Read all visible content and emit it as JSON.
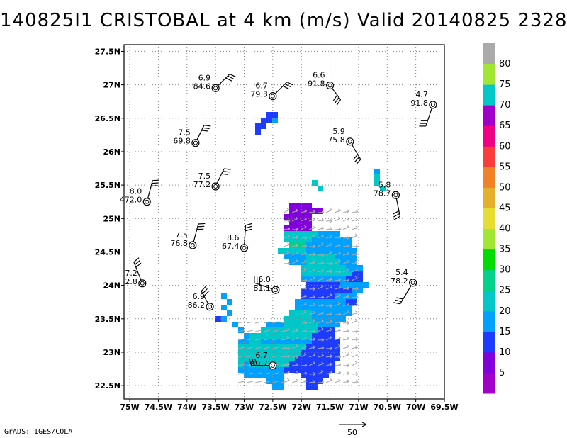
{
  "chart_data": {
    "type": "map",
    "title": "140825I1 CRISTOBAL at 4 km (m/s) Valid 20140825 2328Z",
    "credit": "GrADS: IGES/COLA",
    "x_ticks": [
      "75W",
      "74.5W",
      "74W",
      "73.5W",
      "73W",
      "72.5W",
      "72W",
      "71.5W",
      "71W",
      "70.5W",
      "70W",
      "69.5W"
    ],
    "y_ticks": [
      "22.5N",
      "23N",
      "23.5N",
      "24N",
      "24.5N",
      "25N",
      "25.5N",
      "26N",
      "26.5N",
      "27N",
      "27.5N"
    ],
    "xlim": [
      -75.1,
      -69.5
    ],
    "ylim": [
      22.3,
      27.6
    ],
    "grid": true,
    "colorbar": {
      "levels": [
        "5",
        "10",
        "15",
        "20",
        "25",
        "30",
        "35",
        "40",
        "45",
        "50",
        "55",
        "60",
        "65",
        "70",
        "75",
        "80"
      ],
      "colors": [
        "#a000c8",
        "#8200dc",
        "#1e3cff",
        "#00a0ff",
        "#00c8c8",
        "#00d28c",
        "#00dc00",
        "#a0e632",
        "#e6dc32",
        "#e6af2d",
        "#f08228",
        "#fa3c3c",
        "#f00082",
        "#a000c8",
        "#00c8c8",
        "#a0e632",
        "#aaaaaa"
      ]
    },
    "vector_scale_label": "50",
    "stations": [
      {
        "lon": -73.5,
        "lat": 26.95,
        "speed": "6.9",
        "dir": "84.6"
      },
      {
        "lon": -72.5,
        "lat": 26.83,
        "speed": "6.7",
        "dir": "79.3"
      },
      {
        "lon": -71.5,
        "lat": 26.99,
        "speed": "6.6",
        "dir": "91.8"
      },
      {
        "lon": -69.7,
        "lat": 26.7,
        "speed": "4.7",
        "dir": "91.8"
      },
      {
        "lon": -73.85,
        "lat": 26.13,
        "speed": "7.5",
        "dir": "69.8"
      },
      {
        "lon": -71.15,
        "lat": 26.15,
        "speed": "5.9",
        "dir": "75.8"
      },
      {
        "lon": -73.5,
        "lat": 25.48,
        "speed": "7.5",
        "dir": "77.2"
      },
      {
        "lon": -74.7,
        "lat": 25.25,
        "speed": "8.0",
        "dir": "472.0"
      },
      {
        "lon": -70.35,
        "lat": 25.35,
        "speed": "5.8",
        "dir": "78.7"
      },
      {
        "lon": -73.9,
        "lat": 24.6,
        "speed": "7.5",
        "dir": "76.8"
      },
      {
        "lon": -73.0,
        "lat": 24.56,
        "speed": "8.6",
        "dir": "67.4"
      },
      {
        "lon": -74.78,
        "lat": 24.03,
        "speed": "7.2",
        "dir": "2.8"
      },
      {
        "lon": -72.45,
        "lat": 23.93,
        "speed": "6.0",
        "dir": "81.1"
      },
      {
        "lon": -70.05,
        "lat": 24.04,
        "speed": "5.4",
        "dir": "78.2"
      },
      {
        "lon": -73.6,
        "lat": 23.68,
        "speed": "6.9",
        "dir": "86.2"
      },
      {
        "lon": -72.5,
        "lat": 22.8,
        "speed": "6.7",
        "dir": "89.7"
      }
    ]
  }
}
